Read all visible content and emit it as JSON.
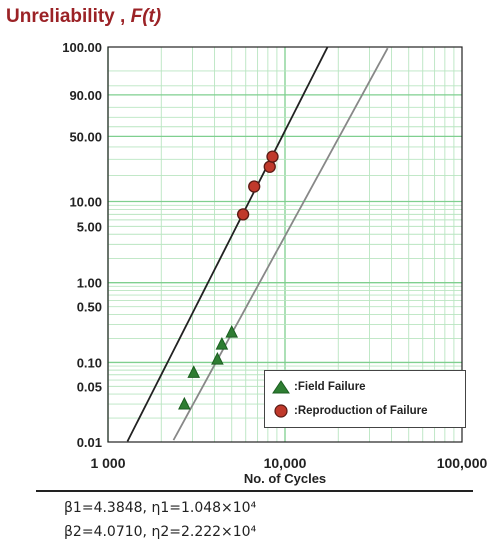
{
  "chart_data": {
    "type": "scatter",
    "title": "Unreliability",
    "title_symbol": "F(t)",
    "xlabel": "No. of Cycles",
    "x_scale": "log",
    "y_scale": "weibull",
    "xlim": [
      1000,
      100000
    ],
    "ylim": [
      0.01,
      100
    ],
    "x_tick_labels": [
      {
        "value": 1000,
        "label": "1 000"
      },
      {
        "value": 10000,
        "label": "10,000"
      },
      {
        "value": 100000,
        "label": "100,000"
      }
    ],
    "y_tick_labels": [
      {
        "value": 100,
        "label": "100.00"
      },
      {
        "value": 90,
        "label": "90.00"
      },
      {
        "value": 50,
        "label": "50.00"
      },
      {
        "value": 10,
        "label": "10.00"
      },
      {
        "value": 5,
        "label": "5.00"
      },
      {
        "value": 1,
        "label": "1.00"
      },
      {
        "value": 0.5,
        "label": "0.50"
      },
      {
        "value": 0.1,
        "label": "0.10"
      },
      {
        "value": 0.05,
        "label": "0.05"
      },
      {
        "value": 0.01,
        "label": "0.01"
      }
    ],
    "grid": true,
    "legend_position": "bottom-right",
    "series": [
      {
        "name": "Field Failure",
        "marker": "triangle",
        "color": "#2e7d32",
        "points": [
          {
            "x": 2700,
            "y": 0.03
          },
          {
            "x": 3050,
            "y": 0.075
          },
          {
            "x": 4150,
            "y": 0.11
          },
          {
            "x": 4400,
            "y": 0.17
          },
          {
            "x": 5000,
            "y": 0.24
          }
        ]
      },
      {
        "name": "Reproduction of Failure",
        "marker": "circle",
        "color": "#c0392b",
        "points": [
          {
            "x": 5800,
            "y": 7.0
          },
          {
            "x": 6700,
            "y": 15.0
          },
          {
            "x": 8200,
            "y": 25.0
          },
          {
            "x": 8500,
            "y": 32.0
          }
        ]
      }
    ],
    "fit_lines": [
      {
        "beta": 4.3848,
        "eta": 10480,
        "color": "#222222"
      },
      {
        "beta": 4.071,
        "eta": 22220,
        "color": "#888888"
      }
    ],
    "annotations": [
      "β1=4.3848, η1=1.048×10⁴",
      "β2=4.0710, η2=2.222×10⁴"
    ]
  },
  "colors": {
    "title": "#9b2226",
    "grid_major": "#7fcf8f",
    "grid_minor": "#b9e5c1"
  }
}
